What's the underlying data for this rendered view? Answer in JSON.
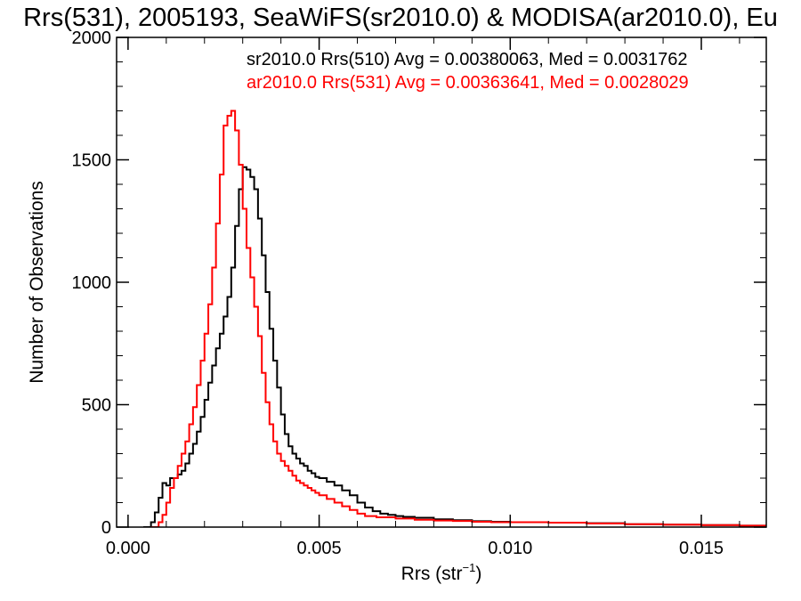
{
  "chart_data": {
    "type": "line",
    "title": "Rrs(531), 2005193, SeaWiFS(sr2010.0) & MODISA(ar2010.0), Eu",
    "xlabel_main": "Rrs (str",
    "xlabel_sup": "−1",
    "xlabel_close": ")",
    "ylabel": "Number of Observations",
    "xlim": [
      -0.0003,
      0.0167
    ],
    "ylim": [
      0,
      2000
    ],
    "xticks": [
      {
        "value": 0.0,
        "label": "0.000"
      },
      {
        "value": 0.005,
        "label": "0.005"
      },
      {
        "value": 0.01,
        "label": "0.010"
      },
      {
        "value": 0.015,
        "label": "0.015"
      }
    ],
    "yticks": [
      {
        "value": 0,
        "label": "0"
      },
      {
        "value": 500,
        "label": "500"
      },
      {
        "value": 1000,
        "label": "1000"
      },
      {
        "value": 1500,
        "label": "1500"
      },
      {
        "value": 2000,
        "label": "2000"
      }
    ],
    "grid": false,
    "legend_position": "top-right",
    "series": [
      {
        "name": "sr2010.0 Rrs(510) Avg = 0.00380063, Med = 0.0031762",
        "color": "#000000",
        "points": [
          [
            0.0004,
            0
          ],
          [
            0.0006,
            20
          ],
          [
            0.0007,
            60
          ],
          [
            0.0008,
            120
          ],
          [
            0.0009,
            180
          ],
          [
            0.001,
            170
          ],
          [
            0.0011,
            200
          ],
          [
            0.0012,
            200
          ],
          [
            0.0013,
            215
          ],
          [
            0.0014,
            230
          ],
          [
            0.0015,
            260
          ],
          [
            0.0016,
            300
          ],
          [
            0.0017,
            340
          ],
          [
            0.0018,
            390
          ],
          [
            0.0019,
            450
          ],
          [
            0.002,
            520
          ],
          [
            0.0021,
            590
          ],
          [
            0.0022,
            660
          ],
          [
            0.0023,
            730
          ],
          [
            0.0024,
            790
          ],
          [
            0.0025,
            860
          ],
          [
            0.0026,
            940
          ],
          [
            0.0027,
            1060
          ],
          [
            0.0028,
            1230
          ],
          [
            0.0029,
            1380
          ],
          [
            0.003,
            1470
          ],
          [
            0.0031,
            1460
          ],
          [
            0.0032,
            1430
          ],
          [
            0.0033,
            1380
          ],
          [
            0.0034,
            1260
          ],
          [
            0.0035,
            1110
          ],
          [
            0.0036,
            960
          ],
          [
            0.0037,
            810
          ],
          [
            0.0038,
            680
          ],
          [
            0.0039,
            570
          ],
          [
            0.004,
            460
          ],
          [
            0.0041,
            380
          ],
          [
            0.0042,
            330
          ],
          [
            0.0043,
            300
          ],
          [
            0.0044,
            280
          ],
          [
            0.0045,
            260
          ],
          [
            0.0046,
            250
          ],
          [
            0.0047,
            230
          ],
          [
            0.0048,
            220
          ],
          [
            0.0049,
            205
          ],
          [
            0.005,
            200
          ],
          [
            0.0052,
            185
          ],
          [
            0.0054,
            170
          ],
          [
            0.0056,
            150
          ],
          [
            0.0058,
            130
          ],
          [
            0.006,
            100
          ],
          [
            0.0062,
            80
          ],
          [
            0.0064,
            65
          ],
          [
            0.0066,
            55
          ],
          [
            0.0068,
            50
          ],
          [
            0.007,
            45
          ],
          [
            0.0072,
            42
          ],
          [
            0.0075,
            38
          ],
          [
            0.008,
            32
          ],
          [
            0.0085,
            28
          ],
          [
            0.009,
            24
          ],
          [
            0.0095,
            22
          ],
          [
            0.01,
            20
          ],
          [
            0.011,
            18
          ],
          [
            0.012,
            16
          ],
          [
            0.013,
            12
          ],
          [
            0.014,
            10
          ],
          [
            0.015,
            8
          ],
          [
            0.016,
            6
          ],
          [
            0.0167,
            5
          ]
        ]
      },
      {
        "name": "ar2010.0 Rrs(531) Avg = 0.00363641, Med = 0.0028029",
        "color": "#ff0000",
        "points": [
          [
            0.0006,
            0
          ],
          [
            0.0008,
            20
          ],
          [
            0.0009,
            50
          ],
          [
            0.001,
            100
          ],
          [
            0.0011,
            160
          ],
          [
            0.0012,
            200
          ],
          [
            0.0013,
            250
          ],
          [
            0.0014,
            300
          ],
          [
            0.0015,
            350
          ],
          [
            0.0016,
            420
          ],
          [
            0.0017,
            490
          ],
          [
            0.0018,
            580
          ],
          [
            0.0019,
            680
          ],
          [
            0.002,
            790
          ],
          [
            0.0021,
            910
          ],
          [
            0.0022,
            1060
          ],
          [
            0.0023,
            1240
          ],
          [
            0.0024,
            1440
          ],
          [
            0.0025,
            1640
          ],
          [
            0.0026,
            1680
          ],
          [
            0.0027,
            1700
          ],
          [
            0.0028,
            1620
          ],
          [
            0.0029,
            1480
          ],
          [
            0.003,
            1300
          ],
          [
            0.0031,
            1140
          ],
          [
            0.0032,
            1020
          ],
          [
            0.0033,
            900
          ],
          [
            0.0034,
            780
          ],
          [
            0.0035,
            630
          ],
          [
            0.0036,
            510
          ],
          [
            0.0037,
            420
          ],
          [
            0.0038,
            350
          ],
          [
            0.0039,
            300
          ],
          [
            0.004,
            270
          ],
          [
            0.0041,
            250
          ],
          [
            0.0042,
            230
          ],
          [
            0.0043,
            210
          ],
          [
            0.0044,
            190
          ],
          [
            0.0045,
            180
          ],
          [
            0.0046,
            170
          ],
          [
            0.0047,
            160
          ],
          [
            0.0048,
            150
          ],
          [
            0.0049,
            140
          ],
          [
            0.005,
            130
          ],
          [
            0.0052,
            115
          ],
          [
            0.0054,
            100
          ],
          [
            0.0056,
            85
          ],
          [
            0.0058,
            70
          ],
          [
            0.006,
            55
          ],
          [
            0.0062,
            45
          ],
          [
            0.0065,
            40
          ],
          [
            0.007,
            35
          ],
          [
            0.0075,
            30
          ],
          [
            0.008,
            27
          ],
          [
            0.0085,
            25
          ],
          [
            0.009,
            22
          ],
          [
            0.0095,
            20
          ],
          [
            0.01,
            20
          ],
          [
            0.011,
            18
          ],
          [
            0.012,
            15
          ],
          [
            0.013,
            12
          ],
          [
            0.014,
            10
          ],
          [
            0.015,
            8
          ],
          [
            0.016,
            6
          ],
          [
            0.0167,
            5
          ]
        ]
      }
    ]
  }
}
